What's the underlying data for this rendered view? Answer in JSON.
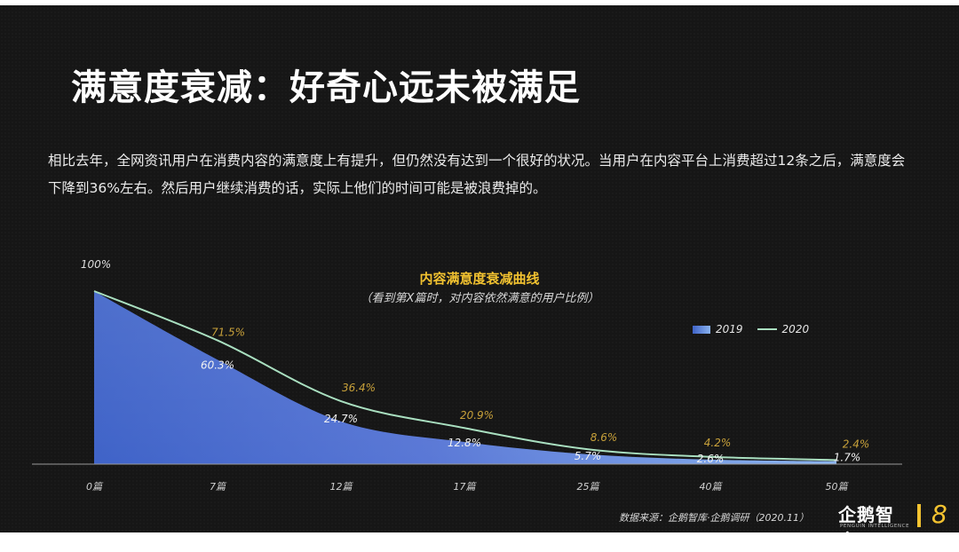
{
  "slide": {
    "title": "满意度衰减：好奇心远未被满足",
    "description": "相比去年，全网资讯用户在消费内容的满意度上有提升，但仍然没有达到一个很好的状况。当用户在内容平台上消费超过12条之后，满意度会下降到36%左右。然后用户继续消费的话，实际上他们的时间可能是被浪费掉的。",
    "source": "数据来源：企鹅智库·企鹅调研（2020.11）",
    "logo_text": "企鹅智库",
    "logo_subtext": "PENGUIN INTELLIGENCE",
    "page_number": "8"
  },
  "chart_data": {
    "type": "area",
    "title": "内容满意度衰减曲线",
    "subtitle": "（看到第X篇时，对内容依然满意的用户比例）",
    "categories": [
      "0篇",
      "7篇",
      "12篇",
      "17篇",
      "25篇",
      "40篇",
      "50篇"
    ],
    "series": [
      {
        "name": "2019",
        "kind": "area",
        "values": [
          100,
          60.3,
          24.7,
          12.8,
          5.7,
          2.6,
          1.7
        ],
        "labels": [
          "",
          "60.3%",
          "24.7%",
          "12.8%",
          "5.7%",
          "2.6%",
          "1.7%"
        ],
        "color_start": "#3f63c8",
        "color_end": "#8ab3ef"
      },
      {
        "name": "2020",
        "kind": "line",
        "values": [
          100,
          71.5,
          36.4,
          20.9,
          8.6,
          4.2,
          2.4
        ],
        "labels": [
          "100%",
          "71.5%",
          "36.4%",
          "20.9%",
          "8.6%",
          "4.2%",
          "2.4%"
        ],
        "color": "#a9dfc0",
        "label_color": "#c8a13a"
      }
    ],
    "ylim": [
      0,
      100
    ],
    "grid": false,
    "legend_position": "top-right"
  }
}
